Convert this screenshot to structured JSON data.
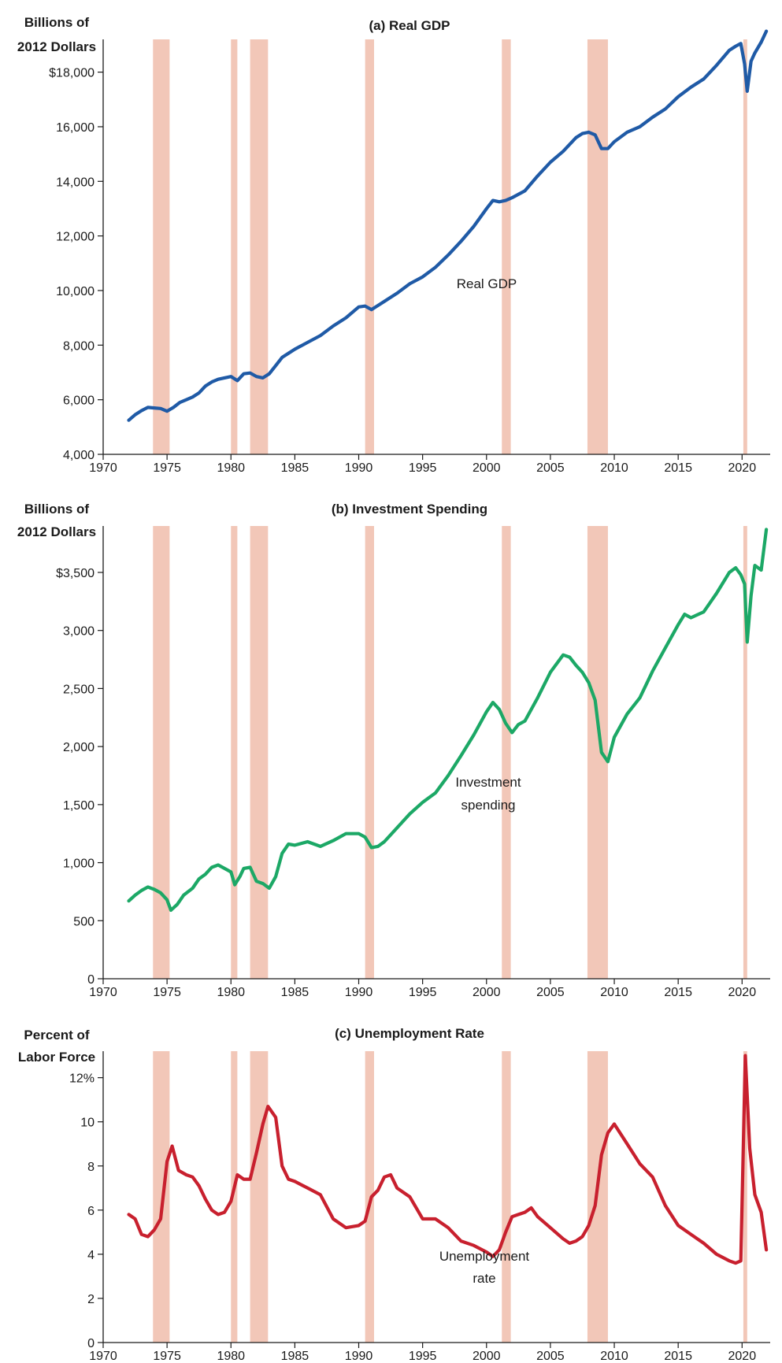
{
  "colors": {
    "recession": "#f2c7b8",
    "gdp": "#1f5aa6",
    "investment": "#1ca866",
    "unemployment": "#c8202e",
    "axis": "#1a1a1a"
  },
  "recessions": [
    [
      1973.9,
      1975.2
    ],
    [
      1980.0,
      1980.5
    ],
    [
      1981.5,
      1982.9
    ],
    [
      1990.5,
      1991.2
    ],
    [
      2001.2,
      2001.9
    ],
    [
      2007.9,
      2009.5
    ],
    [
      2020.1,
      2020.4
    ]
  ],
  "chart_data": [
    {
      "type": "line",
      "title": "(a) Real GDP",
      "ylabel_lines": [
        "Billions of",
        "2012 Dollars"
      ],
      "annotation_lines": [
        "Real GDP"
      ],
      "xlim": [
        1970,
        2022.2
      ],
      "ylim": [
        4000,
        19200
      ],
      "xticks": [
        1970,
        1975,
        1980,
        1985,
        1990,
        1995,
        2000,
        2005,
        2010,
        2015,
        2020
      ],
      "xtick_labels": [
        "1970",
        "1975",
        "1980",
        "1985",
        "1990",
        "1995",
        "2000",
        "2005",
        "2010",
        "2015",
        "2020"
      ],
      "yticks": [
        4000,
        6000,
        8000,
        10000,
        12000,
        14000,
        16000,
        18000
      ],
      "ytick_labels": [
        "4,000",
        "6,000",
        "8,000",
        "10,000",
        "12,000",
        "14,000",
        "16,000",
        "$18,000"
      ],
      "series": [
        {
          "color_key": "gdp",
          "x": [
            1972.0,
            1972.5,
            1973.0,
            1973.5,
            1974.0,
            1974.5,
            1975.0,
            1975.5,
            1976.0,
            1976.5,
            1977.0,
            1977.5,
            1978.0,
            1978.5,
            1979.0,
            1979.5,
            1980.0,
            1980.5,
            1981.0,
            1981.5,
            1982.0,
            1982.5,
            1983.0,
            1983.5,
            1984.0,
            1984.5,
            1985.0,
            1986.0,
            1987.0,
            1988.0,
            1989.0,
            1990.0,
            1990.5,
            1991.0,
            1991.5,
            1992.0,
            1993.0,
            1994.0,
            1995.0,
            1996.0,
            1997.0,
            1998.0,
            1999.0,
            2000.0,
            2000.5,
            2001.0,
            2001.5,
            2002.0,
            2003.0,
            2004.0,
            2005.0,
            2006.0,
            2007.0,
            2007.5,
            2008.0,
            2008.5,
            2009.0,
            2009.5,
            2010.0,
            2011.0,
            2012.0,
            2013.0,
            2014.0,
            2015.0,
            2016.0,
            2017.0,
            2018.0,
            2019.0,
            2019.5,
            2019.9,
            2020.2,
            2020.4,
            2020.7,
            2021.0,
            2021.5,
            2021.9
          ],
          "values": [
            5250,
            5450,
            5600,
            5720,
            5700,
            5680,
            5580,
            5720,
            5900,
            6000,
            6100,
            6250,
            6500,
            6650,
            6750,
            6800,
            6850,
            6700,
            6950,
            6980,
            6850,
            6800,
            6950,
            7250,
            7550,
            7700,
            7850,
            8100,
            8350,
            8700,
            9000,
            9400,
            9430,
            9300,
            9450,
            9600,
            9900,
            10250,
            10500,
            10850,
            11300,
            11800,
            12350,
            13000,
            13300,
            13250,
            13300,
            13400,
            13650,
            14200,
            14700,
            15100,
            15600,
            15750,
            15800,
            15700,
            15200,
            15200,
            15450,
            15800,
            16000,
            16350,
            16650,
            17100,
            17450,
            17750,
            18250,
            18800,
            18950,
            19050,
            18300,
            17300,
            18400,
            18700,
            19100,
            19500
          ]
        }
      ]
    },
    {
      "type": "line",
      "title": "(b) Investment Spending",
      "ylabel_lines": [
        "Billions of",
        "2012 Dollars"
      ],
      "annotation_lines": [
        "Investment",
        "spending"
      ],
      "xlim": [
        1970,
        2022.2
      ],
      "ylim": [
        0,
        3900
      ],
      "xticks": [
        1970,
        1975,
        1980,
        1985,
        1990,
        1995,
        2000,
        2005,
        2010,
        2015,
        2020
      ],
      "xtick_labels": [
        "1970",
        "1975",
        "1980",
        "1985",
        "1990",
        "1995",
        "2000",
        "2005",
        "2010",
        "2015",
        "2020"
      ],
      "yticks": [
        0,
        500,
        1000,
        1500,
        2000,
        2500,
        3000,
        3500
      ],
      "ytick_labels": [
        "0",
        "500",
        "1,000",
        "1,500",
        "2,000",
        "2,500",
        "3,000",
        "$3,500"
      ],
      "series": [
        {
          "color_key": "investment",
          "x": [
            1972.0,
            1972.5,
            1973.0,
            1973.5,
            1974.0,
            1974.5,
            1975.0,
            1975.3,
            1975.8,
            1976.3,
            1977.0,
            1977.5,
            1978.0,
            1978.5,
            1979.0,
            1979.5,
            1980.0,
            1980.3,
            1980.7,
            1981.0,
            1981.5,
            1982.0,
            1982.5,
            1983.0,
            1983.5,
            1984.0,
            1984.5,
            1985.0,
            1986.0,
            1987.0,
            1988.0,
            1989.0,
            1990.0,
            1990.5,
            1991.0,
            1991.5,
            1992.0,
            1993.0,
            1994.0,
            1995.0,
            1996.0,
            1997.0,
            1998.0,
            1999.0,
            2000.0,
            2000.5,
            2001.0,
            2001.5,
            2002.0,
            2002.5,
            2003.0,
            2004.0,
            2005.0,
            2006.0,
            2006.5,
            2007.0,
            2007.5,
            2008.0,
            2008.5,
            2009.0,
            2009.5,
            2010.0,
            2011.0,
            2012.0,
            2013.0,
            2014.0,
            2015.0,
            2015.5,
            2016.0,
            2017.0,
            2018.0,
            2019.0,
            2019.5,
            2019.9,
            2020.2,
            2020.4,
            2020.7,
            2021.0,
            2021.5,
            2021.9
          ],
          "values": [
            670,
            720,
            760,
            790,
            770,
            740,
            680,
            590,
            640,
            720,
            780,
            860,
            900,
            960,
            980,
            950,
            920,
            810,
            880,
            950,
            960,
            840,
            820,
            780,
            880,
            1080,
            1160,
            1150,
            1180,
            1140,
            1190,
            1250,
            1250,
            1220,
            1130,
            1140,
            1180,
            1300,
            1420,
            1520,
            1600,
            1750,
            1920,
            2100,
            2300,
            2380,
            2320,
            2200,
            2120,
            2190,
            2220,
            2420,
            2640,
            2790,
            2770,
            2700,
            2640,
            2550,
            2400,
            1950,
            1870,
            2080,
            2280,
            2420,
            2650,
            2850,
            3050,
            3140,
            3110,
            3160,
            3320,
            3500,
            3540,
            3480,
            3400,
            2900,
            3300,
            3560,
            3520,
            3870
          ]
        }
      ]
    },
    {
      "type": "line",
      "title": "(c) Unemployment Rate",
      "ylabel_lines": [
        "Percent of",
        "Labor Force"
      ],
      "annotation_lines": [
        "Unemployment",
        "rate"
      ],
      "xlim": [
        1970,
        2022.2
      ],
      "ylim": [
        0,
        13.2
      ],
      "xticks": [
        1970,
        1975,
        1980,
        1985,
        1990,
        1995,
        2000,
        2005,
        2010,
        2015,
        2020
      ],
      "xtick_labels": [
        "1970",
        "1975",
        "1980",
        "1985",
        "1990",
        "1995",
        "2000",
        "2005",
        "2010",
        "2015",
        "2020"
      ],
      "yticks": [
        0,
        2,
        4,
        6,
        8,
        10,
        12
      ],
      "ytick_labels": [
        "0",
        "2",
        "4",
        "6",
        "8",
        "10",
        "12%"
      ],
      "series": [
        {
          "color_key": "unemployment",
          "x": [
            1972.0,
            1972.5,
            1973.0,
            1973.5,
            1974.0,
            1974.5,
            1975.0,
            1975.4,
            1975.9,
            1976.5,
            1977.0,
            1977.5,
            1978.0,
            1978.5,
            1979.0,
            1979.5,
            1980.0,
            1980.5,
            1981.0,
            1981.5,
            1982.0,
            1982.5,
            1982.9,
            1983.5,
            1984.0,
            1984.5,
            1985.0,
            1986.0,
            1987.0,
            1988.0,
            1989.0,
            1990.0,
            1990.5,
            1991.0,
            1991.5,
            1992.0,
            1992.5,
            1993.0,
            1994.0,
            1995.0,
            1996.0,
            1997.0,
            1998.0,
            1999.0,
            2000.0,
            2000.5,
            2001.0,
            2001.5,
            2002.0,
            2002.5,
            2003.0,
            2003.5,
            2004.0,
            2005.0,
            2006.0,
            2006.5,
            2007.0,
            2007.5,
            2008.0,
            2008.5,
            2009.0,
            2009.5,
            2010.0,
            2011.0,
            2012.0,
            2013.0,
            2014.0,
            2015.0,
            2016.0,
            2017.0,
            2018.0,
            2019.0,
            2019.5,
            2019.9,
            2020.25,
            2020.6,
            2021.0,
            2021.5,
            2021.9
          ],
          "values": [
            5.8,
            5.6,
            4.9,
            4.8,
            5.1,
            5.6,
            8.2,
            8.9,
            7.8,
            7.6,
            7.5,
            7.1,
            6.5,
            6.0,
            5.8,
            5.9,
            6.4,
            7.6,
            7.4,
            7.4,
            8.6,
            9.9,
            10.7,
            10.2,
            8.0,
            7.4,
            7.3,
            7.0,
            6.7,
            5.6,
            5.2,
            5.3,
            5.5,
            6.6,
            6.9,
            7.5,
            7.6,
            7.0,
            6.6,
            5.6,
            5.6,
            5.2,
            4.6,
            4.4,
            4.1,
            3.9,
            4.2,
            5.0,
            5.7,
            5.8,
            5.9,
            6.1,
            5.7,
            5.2,
            4.7,
            4.5,
            4.6,
            4.8,
            5.3,
            6.2,
            8.5,
            9.5,
            9.9,
            9.0,
            8.1,
            7.5,
            6.2,
            5.3,
            4.9,
            4.5,
            4.0,
            3.7,
            3.6,
            3.7,
            13.0,
            8.8,
            6.7,
            5.9,
            4.2
          ]
        }
      ]
    }
  ]
}
